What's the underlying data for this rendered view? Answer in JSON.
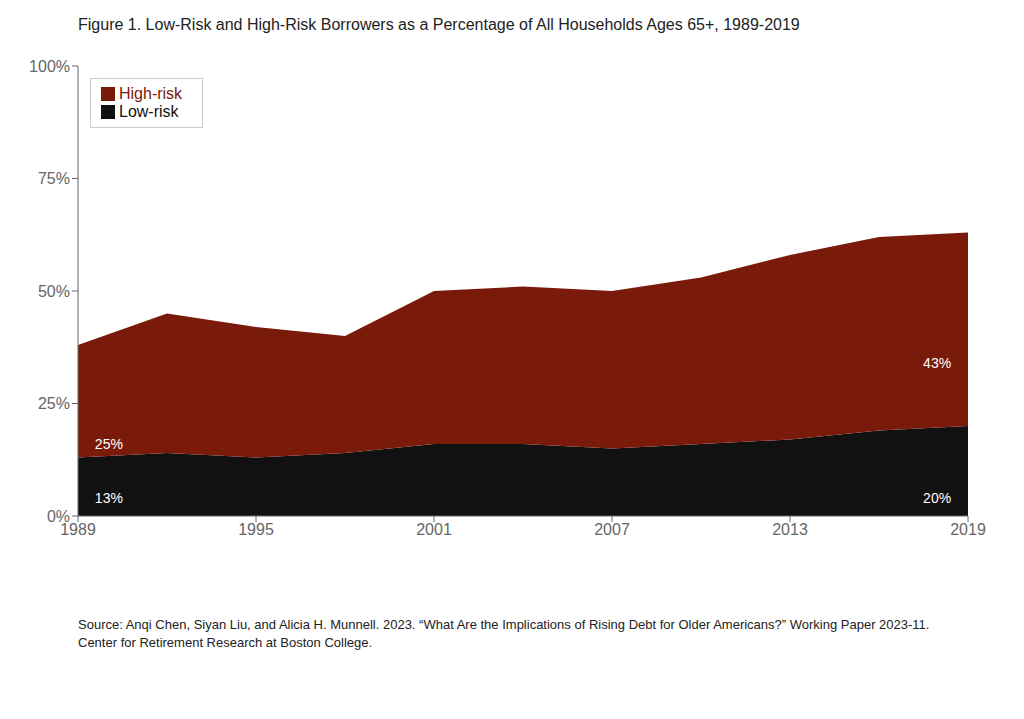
{
  "chart_data": {
    "type": "area",
    "title": "Figure 1. Low-Risk and High-Risk Borrowers as a Percentage of All Households Ages 65+, 1989-2019",
    "source": "Source: Anqi Chen, Siyan Liu, and Alicia H. Munnell. 2023. “What Are the Implications of Rising Debt for Older Americans?” Working Paper 2023-11. Center for Retirement Research at Boston College.",
    "x": [
      1989,
      1992,
      1995,
      1998,
      2001,
      2004,
      2007,
      2010,
      2013,
      2016,
      2019
    ],
    "series": [
      {
        "name": "Low-risk",
        "color": "#111111",
        "values": [
          13,
          14,
          13,
          14,
          16,
          16,
          15,
          16,
          17,
          19,
          20
        ]
      },
      {
        "name": "High-risk",
        "color": "#7a1a0a",
        "values": [
          25,
          31,
          29,
          26,
          34,
          35,
          35,
          37,
          41,
          43,
          43
        ]
      }
    ],
    "stacked": true,
    "xlim": [
      1989,
      2019
    ],
    "xticks": [
      1989,
      1995,
      2001,
      2007,
      2013,
      2019
    ],
    "ylim": [
      0,
      100
    ],
    "yticks": [
      {
        "value": 0,
        "label": "0%"
      },
      {
        "value": 25,
        "label": "25%"
      },
      {
        "value": 50,
        "label": "50%"
      },
      {
        "value": 75,
        "label": "75%"
      },
      {
        "value": 100,
        "label": "100%"
      }
    ],
    "grid": false,
    "legend": "upper left",
    "annotations": [
      {
        "text": "13%",
        "x": 1989.4,
        "y": 4.0
      },
      {
        "text": "20%",
        "x": 2018.6,
        "y": 4.0
      },
      {
        "text": "25%",
        "x": 1989.4,
        "y": 16.0
      },
      {
        "text": "43%",
        "x": 2018.6,
        "y": 34.0
      }
    ]
  }
}
